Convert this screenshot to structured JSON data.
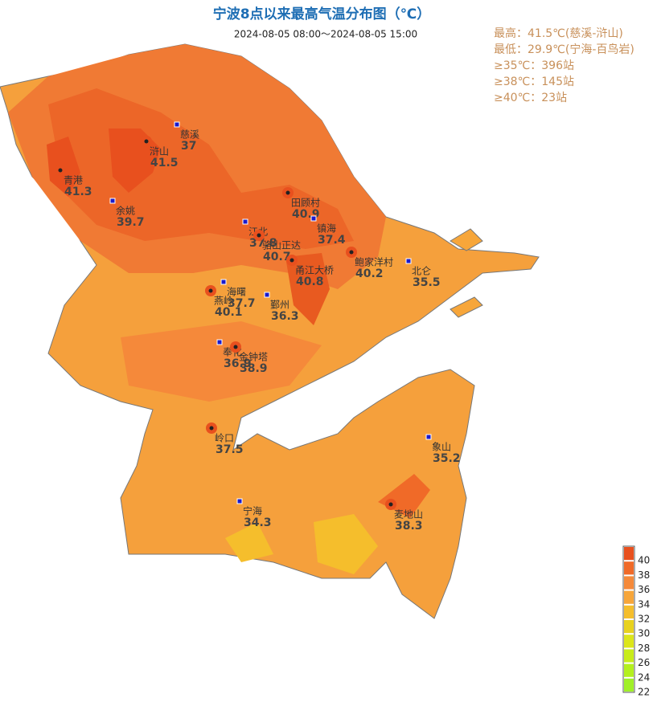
{
  "header": {
    "title": "宁波8点以来最高气温分布图（℃）",
    "subtitle": "2024-08-05  08:00～2024-08-05 15:00"
  },
  "stats": [
    "最高：41.5℃(慈溪-浒山)",
    "最低：29.9℃(宁海-百鸟岩)",
    "≥35℃：396站",
    "≥38℃：145站",
    "≥40℃：23站"
  ],
  "stations": [
    {
      "name": "慈溪",
      "value": "37",
      "kind": "square"
    },
    {
      "name": "浒山",
      "value": "41.5",
      "kind": "dot"
    },
    {
      "name": "青港",
      "value": "41.3",
      "kind": "dot"
    },
    {
      "name": "余姚",
      "value": "39.7",
      "kind": "square"
    },
    {
      "name": "田顾村",
      "value": "40.9",
      "kind": "dot"
    },
    {
      "name": "镇海",
      "value": "37.4",
      "kind": "square"
    },
    {
      "name": "江北",
      "value": "37.8",
      "kind": "square"
    },
    {
      "name": "骆山正达",
      "value": "40.7",
      "kind": "dot"
    },
    {
      "name": "甬江大桥",
      "value": "40.8",
      "kind": "dot"
    },
    {
      "name": "鲍家洋村",
      "value": "40.2",
      "kind": "dot"
    },
    {
      "name": "北仑",
      "value": "35.5",
      "kind": "square"
    },
    {
      "name": "海曙",
      "value": "37.7",
      "kind": "square"
    },
    {
      "name": "燕岭",
      "value": "40.1",
      "kind": "dot"
    },
    {
      "name": "鄞州",
      "value": "36.3",
      "kind": "square"
    },
    {
      "name": "奉化",
      "value": "36.9",
      "kind": "square"
    },
    {
      "name": "金钟塔",
      "value": "38.9",
      "kind": "dot"
    },
    {
      "name": "岭口",
      "value": "37.5",
      "kind": "dot"
    },
    {
      "name": "象山",
      "value": "35.2",
      "kind": "square"
    },
    {
      "name": "宁海",
      "value": "34.3",
      "kind": "square"
    },
    {
      "name": "麦地山",
      "value": "38.3",
      "kind": "dot"
    }
  ],
  "legend": {
    "ticks": [
      40,
      38,
      36,
      34,
      32,
      30,
      28,
      26,
      24,
      22
    ],
    "colors": [
      "#e8501e",
      "#f06a28",
      "#f5893a",
      "#f7a63a",
      "#f5be2c",
      "#e8d21e",
      "#dce61a",
      "#c8ec1a",
      "#b4f01e",
      "#a0f028"
    ]
  }
}
